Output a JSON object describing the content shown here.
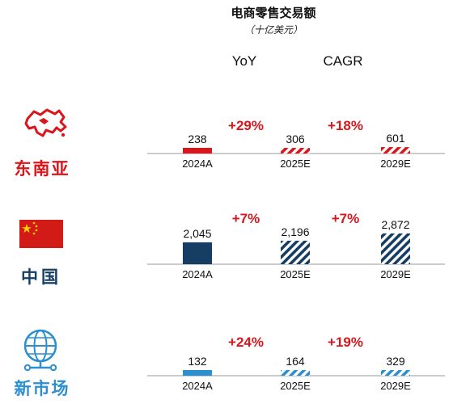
{
  "title": "电商零售交易额",
  "subtitle": "（十亿美元）",
  "col_headers": {
    "yoy": "YoY",
    "cagr": "CAGR"
  },
  "colors": {
    "red": "#d9161c",
    "navy": "#163e64",
    "blue": "#2b8fd0",
    "text": "#111111"
  },
  "chart_data": {
    "type": "bar",
    "categories": [
      "2024A",
      "2025E",
      "2029E"
    ],
    "panels": [
      {
        "region": "东南亚",
        "icon": "southeast-asia-map-icon",
        "color": "#d9161c",
        "values": [
          238,
          306,
          601
        ],
        "labels": [
          "238",
          "306",
          "601"
        ],
        "yoy": "+29%",
        "cagr": "+18%"
      },
      {
        "region": "中国",
        "icon": "china-flag-icon",
        "color": "#163e64",
        "values": [
          2045,
          2196,
          2872
        ],
        "labels": [
          "2,045",
          "2,196",
          "2,872"
        ],
        "yoy": "+7%",
        "cagr": "+7%"
      },
      {
        "region": "新市场",
        "icon": "globe-network-icon",
        "color": "#2b8fd0",
        "values": [
          132,
          164,
          329
        ],
        "labels": [
          "132",
          "164",
          "329"
        ],
        "yoy": "+24%",
        "cagr": "+19%"
      }
    ],
    "bar_style": [
      "solid",
      "hatched",
      "hatched"
    ],
    "scale": "shared",
    "legend": "none",
    "grid": false
  }
}
